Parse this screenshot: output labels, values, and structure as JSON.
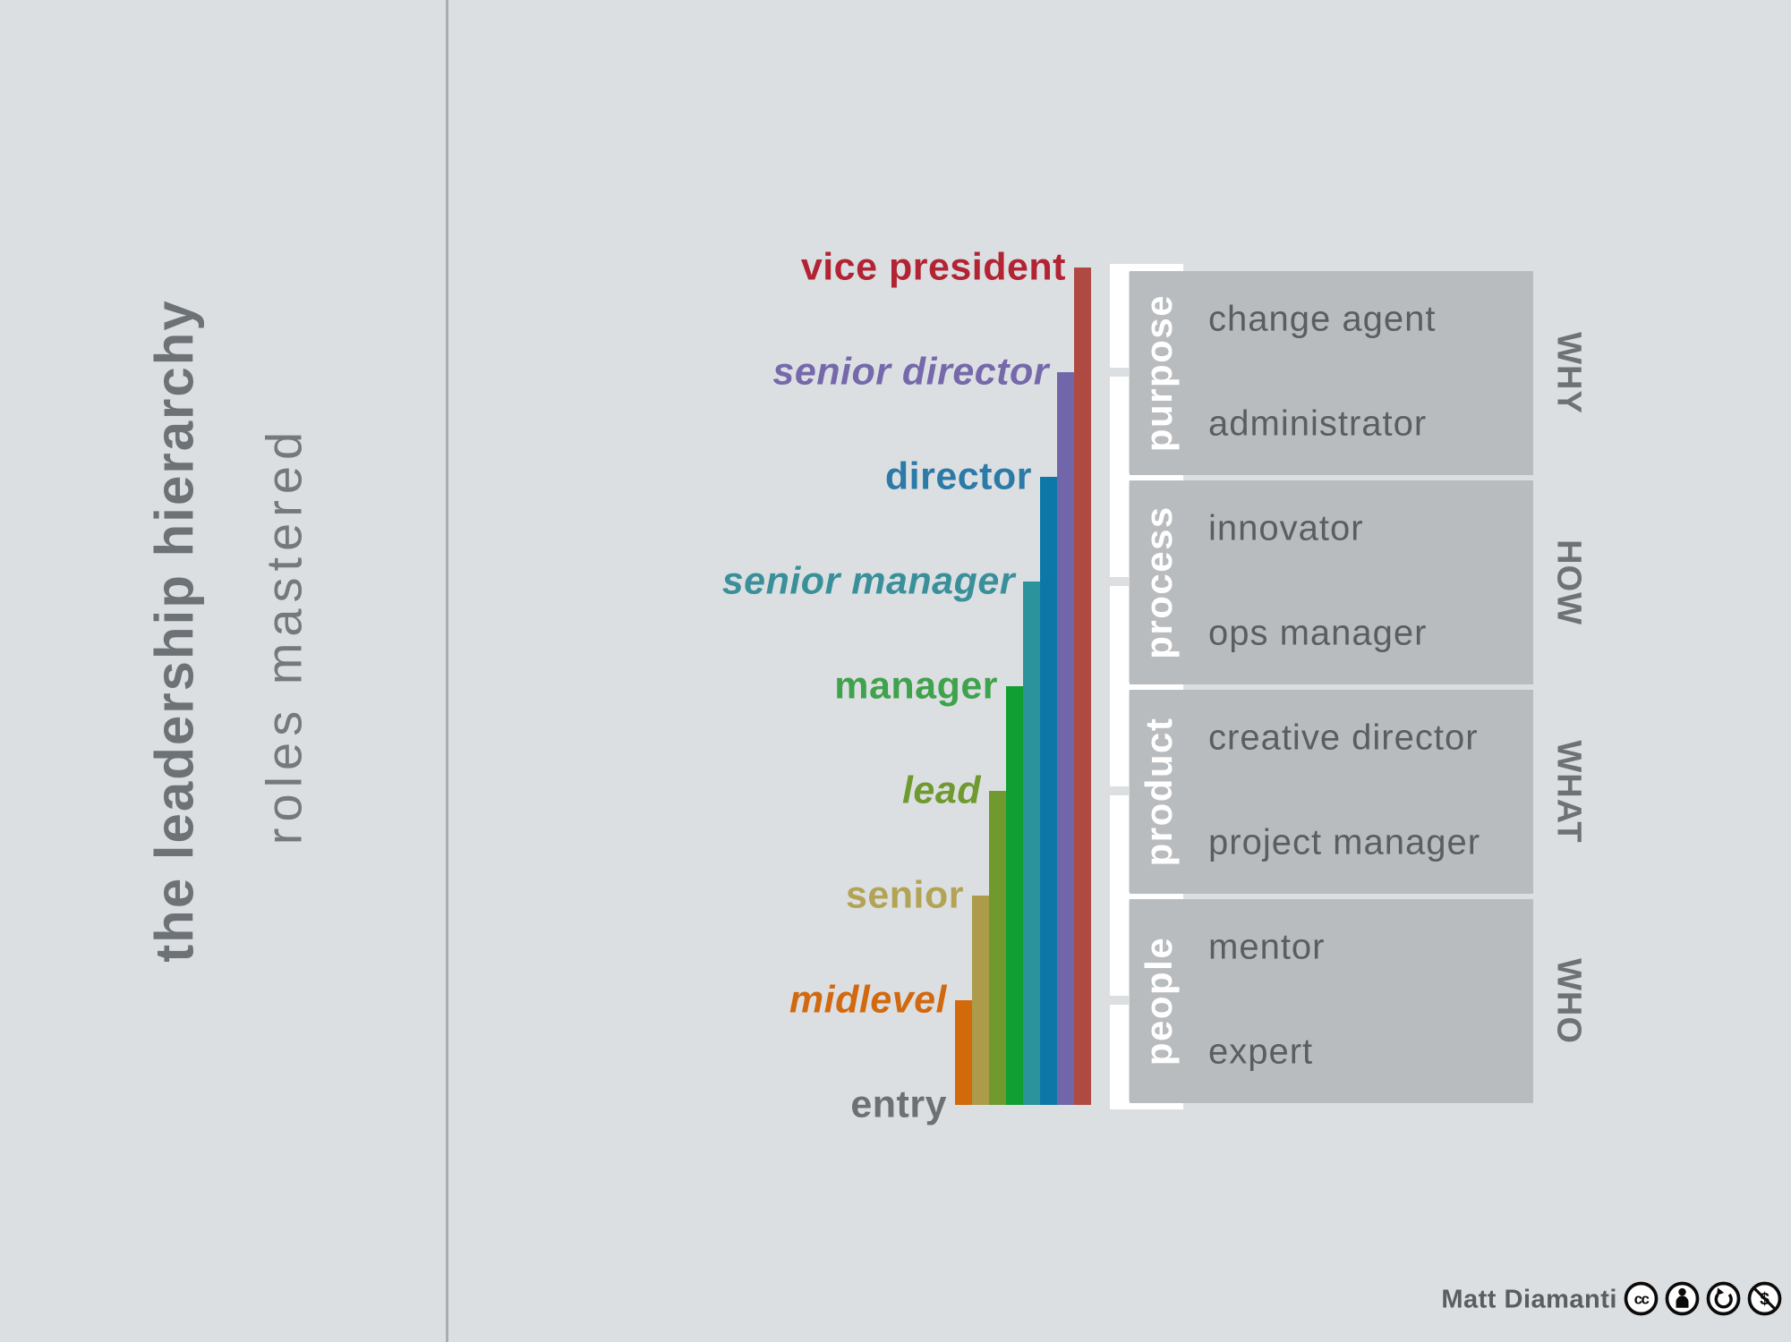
{
  "page": {
    "background_color": "#dcdfe1",
    "divider_color": "#a9adb0"
  },
  "sidebar": {
    "title": "the leadership hierarchy",
    "subtitle": "roles mastered",
    "title_color": "#6d7276",
    "subtitle_color": "#75797c"
  },
  "chart_data": {
    "type": "bar",
    "title": "the leadership hierarchy",
    "subtitle": "roles mastered",
    "legend_position": "none",
    "grid": false,
    "ylim": [
      0,
      8
    ],
    "levels": [
      {
        "label": "entry",
        "value": 0,
        "italic": false,
        "label_color": "#6d7174",
        "bar_color": null
      },
      {
        "label": "midlevel",
        "value": 1,
        "italic": true,
        "label_color": "#d2690f",
        "bar_color": "#d2690b"
      },
      {
        "label": "senior",
        "value": 2,
        "italic": false,
        "label_color": "#b2a355",
        "bar_color": "#ab9b4a"
      },
      {
        "label": "lead",
        "value": 3,
        "italic": true,
        "label_color": "#6f9a2f",
        "bar_color": "#719a2e"
      },
      {
        "label": "manager",
        "value": 4,
        "italic": false,
        "label_color": "#3fa24c",
        "bar_color": "#0f9f33"
      },
      {
        "label": "senior manager",
        "value": 5,
        "italic": true,
        "label_color": "#3a909a",
        "bar_color": "#2b939b"
      },
      {
        "label": "director",
        "value": 6,
        "italic": false,
        "label_color": "#2b7aa7",
        "bar_color": "#0d78a8"
      },
      {
        "label": "senior director",
        "value": 7,
        "italic": true,
        "label_color": "#7568ab",
        "bar_color": "#7166a9"
      },
      {
        "label": "vice president",
        "value": 8,
        "italic": false,
        "label_color": "#b22433",
        "bar_color": "#af4a43"
      }
    ],
    "quadrants": [
      {
        "name": "purpose",
        "question": "WHY",
        "roles": [
          "change agent",
          "administrator"
        ]
      },
      {
        "name": "process",
        "question": "HOW",
        "roles": [
          "innovator",
          "ops manager"
        ]
      },
      {
        "name": "product",
        "question": "WHAT",
        "roles": [
          "creative director",
          "project manager"
        ]
      },
      {
        "name": "people",
        "question": "WHO",
        "roles": [
          "mentor",
          "expert"
        ]
      }
    ],
    "box_color": "#b9bcbf",
    "role_text_color": "#5a5e60",
    "question_color": "#6d7276",
    "bracket_color": "#ffffff"
  },
  "footer": {
    "attribution": "Matt Diamanti",
    "license_icons": [
      "cc",
      "by",
      "sa",
      "nc"
    ]
  }
}
